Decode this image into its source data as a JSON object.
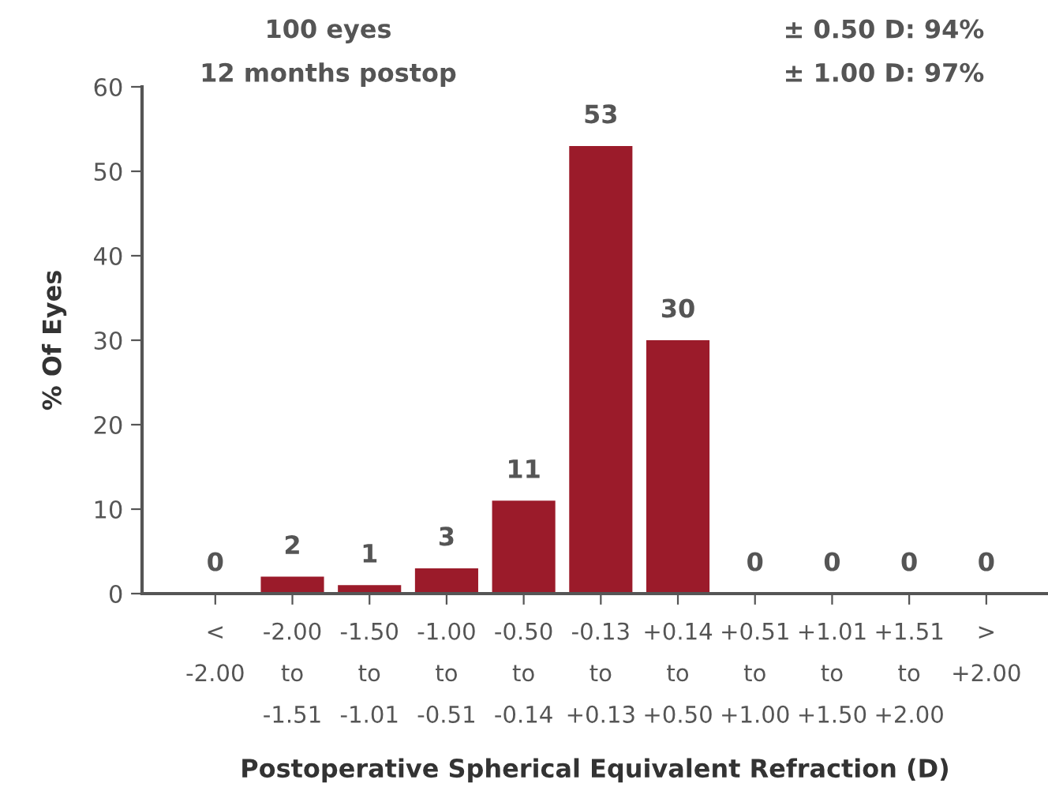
{
  "chart_data": {
    "type": "bar",
    "categories": [
      "<\n-2.00",
      "-2.00\nto\n-1.51",
      "-1.50\nto\n-1.01",
      "-1.00\nto\n-0.51",
      "-0.50\nto\n-0.14",
      "-0.13\nto\n+0.13",
      "+0.14\nto\n+0.50",
      "+0.51\nto\n+1.00",
      "+1.01\nto\n+1.50",
      "+1.51\nto\n+2.00",
      ">\n+2.00"
    ],
    "values": [
      0,
      2,
      1,
      3,
      11,
      53,
      30,
      0,
      0,
      0,
      0
    ],
    "color": "#9b1b2a",
    "xlabel": "Postoperative Spherical Equivalent Refraction (D)",
    "ylabel": "% Of Eyes",
    "ylim": [
      0,
      60
    ],
    "yticks": [
      0,
      10,
      20,
      30,
      40,
      50,
      60
    ],
    "data_labels": true,
    "grid": false,
    "legend": false,
    "annotations": [
      "100 eyes\n12 months postop",
      "± 0.50 D: 94%\n± 1.00 D: 97%"
    ]
  }
}
